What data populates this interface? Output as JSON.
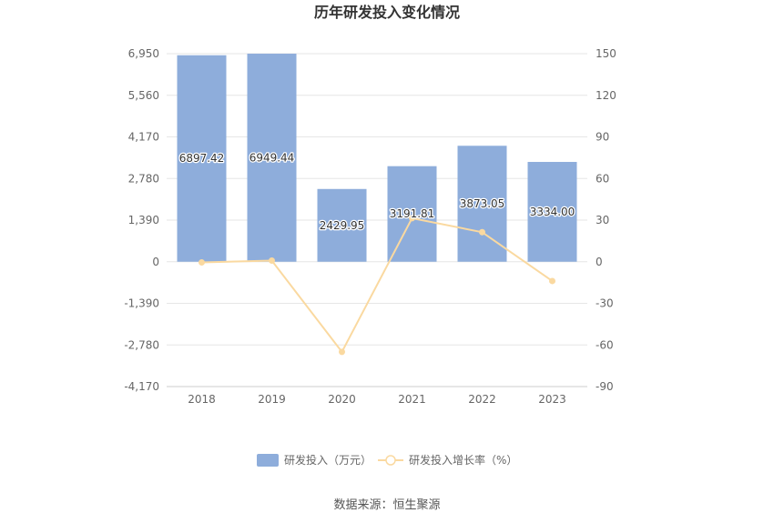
{
  "chart_data": {
    "type": "bar",
    "title": "历年研发投入变化情况",
    "categories": [
      "2018",
      "2019",
      "2020",
      "2021",
      "2022",
      "2023"
    ],
    "series": [
      {
        "name": "研发投入（万元）",
        "type": "bar",
        "axis": "left",
        "color": "#8eaddb",
        "values": [
          6897.42,
          6949.44,
          2429.95,
          3191.81,
          3873.05,
          3334.0
        ],
        "labels": [
          "6897.42",
          "6949.44",
          "2429.95",
          "3191.81",
          "3873.05",
          "3334.00"
        ]
      },
      {
        "name": "研发投入增长率（%）",
        "type": "line",
        "axis": "right",
        "color": "#fad9a0",
        "values": [
          -0.5,
          0.8,
          -65.0,
          31.4,
          21.3,
          -13.9
        ]
      }
    ],
    "y_left": {
      "ylim": [
        -4170,
        6950
      ],
      "ticks": [
        6950,
        5560,
        4170,
        2780,
        1390,
        0,
        -1390,
        -2780,
        -4170
      ],
      "tick_labels": [
        "6,950",
        "5,560",
        "4,170",
        "2,780",
        "1,390",
        "0",
        "-1,390",
        "-2,780",
        "-4,170"
      ]
    },
    "y_right": {
      "ylim": [
        -90,
        150
      ],
      "ticks": [
        150,
        120,
        90,
        60,
        30,
        0,
        -30,
        -60,
        -90
      ],
      "tick_labels": [
        "150",
        "120",
        "90",
        "60",
        "30",
        "0",
        "-30",
        "-60",
        "-90"
      ]
    },
    "grid": true,
    "legend_position": "bottom"
  },
  "source_text": "数据来源：恒生聚源"
}
